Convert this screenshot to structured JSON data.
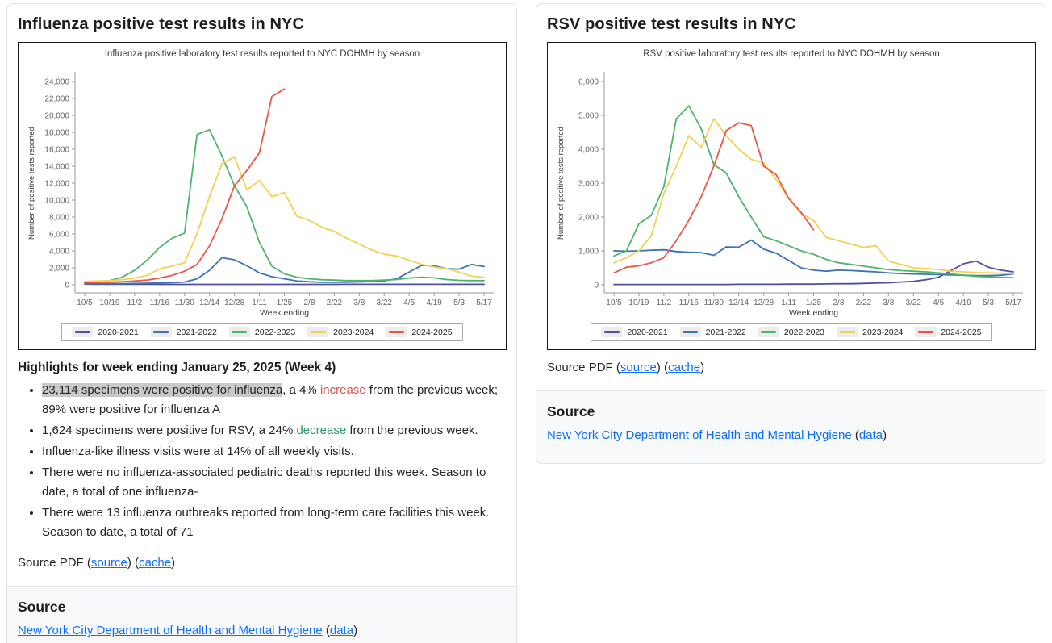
{
  "colors": {
    "link_blue": "#0d6efd",
    "increase_red": "#d9534f",
    "decrease_green": "#2d9966",
    "highlight_bg": "#c9c9c9",
    "chart_axis_gray": "#999999",
    "chart_tick_text": "#666666"
  },
  "left_card": {
    "title": "Influenza positive test results in NYC",
    "chart_data": {
      "type": "line",
      "title": "Influenza positive laboratory test results reported to NYC DOHMH by season",
      "xlabel": "Week ending",
      "ylabel": "Number of positive tests reported",
      "ylim": [
        0,
        24000
      ],
      "y_step": 2000,
      "x_tick_every": 2,
      "grid": false,
      "legend_position": "bottom",
      "x": [
        "10/5",
        "10/12",
        "10/19",
        "10/26",
        "11/2",
        "11/9",
        "11/16",
        "11/23",
        "11/30",
        "12/7",
        "12/14",
        "12/21",
        "12/28",
        "1/4",
        "1/11",
        "1/18",
        "1/25",
        "2/1",
        "2/8",
        "2/15",
        "2/22",
        "3/1",
        "3/8",
        "3/15",
        "3/22",
        "3/29",
        "4/5",
        "4/12",
        "4/19",
        "4/26",
        "5/3",
        "5/10",
        "5/17"
      ],
      "series": [
        {
          "name": "2020-2021",
          "color": "#514fa0",
          "values": [
            80,
            70,
            60,
            60,
            55,
            55,
            50,
            50,
            50,
            50,
            50,
            50,
            50,
            50,
            50,
            50,
            50,
            50,
            50,
            50,
            50,
            55,
            55,
            55,
            60,
            60,
            60,
            60,
            60,
            60,
            60,
            60,
            60
          ]
        },
        {
          "name": "2021-2022",
          "color": "#3d72b4",
          "values": [
            100,
            110,
            120,
            130,
            150,
            180,
            220,
            260,
            320,
            700,
            1700,
            3200,
            2950,
            2250,
            1400,
            950,
            700,
            450,
            350,
            300,
            300,
            310,
            330,
            380,
            480,
            700,
            1500,
            2300,
            2250,
            1900,
            1850,
            2400,
            2150
          ]
        },
        {
          "name": "2022-2023",
          "color": "#4db46e",
          "values": [
            300,
            350,
            500,
            900,
            1700,
            2900,
            4400,
            5500,
            6100,
            17750,
            18300,
            15200,
            11700,
            9200,
            5000,
            2200,
            1300,
            900,
            700,
            600,
            550,
            500,
            500,
            500,
            550,
            620,
            800,
            900,
            820,
            620,
            520,
            500,
            500
          ]
        },
        {
          "name": "2023-2024",
          "color": "#f4d054",
          "values": [
            400,
            450,
            500,
            600,
            800,
            1100,
            1900,
            2200,
            2600,
            6000,
            10400,
            14300,
            15100,
            11200,
            12300,
            10400,
            10900,
            8100,
            7600,
            6800,
            6300,
            5500,
            4800,
            4100,
            3600,
            3400,
            2900,
            2400,
            2100,
            1900,
            1500,
            1000,
            900
          ]
        },
        {
          "name": "2024-2025",
          "color": "#e95849",
          "values": [
            250,
            280,
            300,
            350,
            450,
            550,
            800,
            1100,
            1600,
            2400,
            4600,
            7800,
            11700,
            13500,
            15600,
            22225,
            23114
          ]
        }
      ]
    },
    "highlights_title": "Highlights for week ending January 25, 2025 (Week 4)",
    "bullets": [
      {
        "segments": [
          {
            "text": "23,114 specimens were positive for influenza",
            "style": "highlight"
          },
          {
            "text": ", a 4% "
          },
          {
            "text": "increase",
            "style": "red"
          },
          {
            "text": " from the previous week; 89% were positive for influenza A"
          }
        ]
      },
      {
        "segments": [
          {
            "text": "1,624 specimens were positive for RSV, a 24% "
          },
          {
            "text": "decrease",
            "style": "green"
          },
          {
            "text": " from the previous week."
          }
        ]
      },
      {
        "segments": [
          {
            "text": "Influenza-like illness visits were at 14% of all weekly visits."
          }
        ]
      },
      {
        "segments": [
          {
            "text": "There were no influenza-associated pediatric deaths reported this week. Season to date, a total of one influenza-"
          }
        ]
      },
      {
        "segments": [
          {
            "text": "There were 13 influenza outbreaks reported from long-term care facilities this week. Season to date, a total of 71"
          }
        ]
      }
    ],
    "source_pdf_segments": [
      {
        "text": "Source PDF ("
      },
      {
        "text": "source",
        "style": "link",
        "name": "source-pdf-source-link"
      },
      {
        "text": ") ("
      },
      {
        "text": "cache",
        "style": "link",
        "name": "source-pdf-cache-link"
      },
      {
        "text": ")"
      }
    ],
    "footer": {
      "heading": "Source",
      "line_segments": [
        {
          "text": "New York City Department of Health and Mental Hygiene",
          "style": "link",
          "name": "source-org-link"
        },
        {
          "text": " ("
        },
        {
          "text": "data",
          "style": "link",
          "name": "source-data-link"
        },
        {
          "text": ")"
        }
      ]
    }
  },
  "right_card": {
    "title": "RSV positive test results in NYC",
    "chart_data": {
      "type": "line",
      "title": "RSV positive laboratory test results reported to NYC DOHMH by season",
      "xlabel": "Week ending",
      "ylabel": "Number of positive tests reported",
      "ylim": [
        0,
        6000
      ],
      "y_step": 1000,
      "x_tick_every": 2,
      "grid": false,
      "legend_position": "bottom",
      "x": [
        "10/5",
        "10/12",
        "10/19",
        "10/26",
        "11/2",
        "11/9",
        "11/16",
        "11/23",
        "11/30",
        "12/7",
        "12/14",
        "12/21",
        "12/28",
        "1/4",
        "1/11",
        "1/18",
        "1/25",
        "2/1",
        "2/8",
        "2/15",
        "2/22",
        "3/1",
        "3/8",
        "3/15",
        "3/22",
        "3/29",
        "4/5",
        "4/12",
        "4/19",
        "4/26",
        "5/3",
        "5/10",
        "5/17"
      ],
      "series": [
        {
          "name": "2020-2021",
          "color": "#514fa0",
          "values": [
            10,
            10,
            10,
            10,
            10,
            10,
            10,
            10,
            10,
            10,
            15,
            15,
            15,
            15,
            20,
            20,
            20,
            25,
            30,
            30,
            40,
            50,
            60,
            80,
            100,
            150,
            220,
            420,
            620,
            700,
            520,
            430,
            380
          ]
        },
        {
          "name": "2021-2022",
          "color": "#3d72b4",
          "values": [
            1000,
            990,
            1000,
            1020,
            1030,
            980,
            960,
            950,
            870,
            1120,
            1110,
            1320,
            1050,
            930,
            720,
            500,
            430,
            400,
            430,
            420,
            400,
            380,
            350,
            330,
            320,
            310,
            300,
            290,
            280,
            270,
            270,
            280,
            320
          ]
        },
        {
          "name": "2022-2023",
          "color": "#4db46e",
          "values": [
            850,
            1000,
            1800,
            2050,
            2900,
            4900,
            5280,
            4600,
            3550,
            3300,
            2600,
            2000,
            1420,
            1300,
            1150,
            1000,
            900,
            750,
            650,
            600,
            550,
            500,
            450,
            420,
            400,
            380,
            350,
            320,
            280,
            250,
            230,
            220,
            210
          ]
        },
        {
          "name": "2023-2024",
          "color": "#f4d054",
          "values": [
            650,
            800,
            1000,
            1450,
            2700,
            3500,
            4400,
            4050,
            4900,
            4400,
            4000,
            3700,
            3600,
            3100,
            2550,
            2100,
            1900,
            1400,
            1300,
            1200,
            1100,
            1150,
            700,
            600,
            500,
            480,
            450,
            400,
            380,
            360,
            350,
            340,
            330
          ]
        },
        {
          "name": "2024-2025",
          "color": "#e95849",
          "values": [
            350,
            520,
            560,
            650,
            800,
            1300,
            1900,
            2600,
            3500,
            4550,
            4780,
            4700,
            3500,
            3250,
            2550,
            2137,
            1624
          ]
        }
      ]
    },
    "source_pdf_segments": [
      {
        "text": "Source PDF ("
      },
      {
        "text": "source",
        "style": "link",
        "name": "source-pdf-source-link"
      },
      {
        "text": ") ("
      },
      {
        "text": "cache",
        "style": "link",
        "name": "source-pdf-cache-link"
      },
      {
        "text": ")"
      }
    ],
    "footer": {
      "heading": "Source",
      "line_segments": [
        {
          "text": "New York City Department of Health and Mental Hygiene",
          "style": "link",
          "name": "source-org-link"
        },
        {
          "text": " ("
        },
        {
          "text": "data",
          "style": "link",
          "name": "source-data-link"
        },
        {
          "text": ")"
        }
      ]
    }
  }
}
